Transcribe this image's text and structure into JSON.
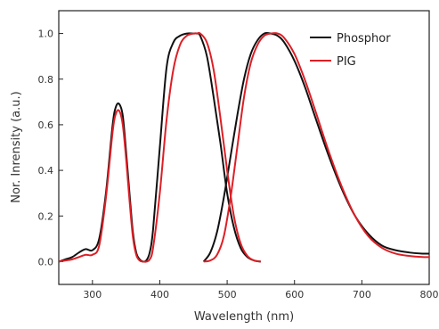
{
  "chart_data": {
    "type": "line",
    "xlabel": "Wavelength (nm)",
    "ylabel": "Nor. Inrensity (a.u.)",
    "xlim": [
      250,
      800
    ],
    "ylim": [
      -0.1,
      1.1
    ],
    "xticks": [
      300,
      400,
      500,
      600,
      700,
      800
    ],
    "yticks": [
      0.0,
      0.2,
      0.4,
      0.6,
      0.8,
      1.0
    ],
    "xtick_labels": [
      "300",
      "400",
      "500",
      "600",
      "700",
      "800"
    ],
    "ytick_labels": [
      "0.0",
      "0.2",
      "0.4",
      "0.6",
      "0.8",
      "1.0"
    ],
    "grid": false,
    "legend_position": "top-right",
    "series": [
      {
        "name": "Phosphor",
        "color": "#111111",
        "segments": [
          {
            "x": [
              250,
              260,
              270,
              280,
              290,
              300,
              310,
              320,
              330,
              335,
              340,
              345,
              350,
              355,
              360,
              365,
              370,
              375,
              380,
              385,
              390,
              400,
              410,
              420,
              430,
              440,
              450,
              455,
              460,
              470,
              480,
              490,
              500,
              510,
              520,
              530,
              540,
              550
            ],
            "y": [
              0.0,
              0.01,
              0.02,
              0.04,
              0.055,
              0.05,
              0.1,
              0.3,
              0.6,
              0.68,
              0.69,
              0.64,
              0.48,
              0.3,
              0.13,
              0.04,
              0.01,
              0.0,
              0.005,
              0.04,
              0.14,
              0.5,
              0.85,
              0.96,
              0.99,
              1.0,
              1.0,
              1.0,
              0.99,
              0.9,
              0.72,
              0.52,
              0.3,
              0.15,
              0.06,
              0.02,
              0.005,
              0.0
            ]
          },
          {
            "x": [
              465,
              475,
              485,
              495,
              505,
              515,
              525,
              535,
              545,
              555,
              565,
              575,
              585,
              600,
              615,
              630,
              650,
              670,
              690,
              710,
              730,
              750,
              770,
              790,
              800
            ],
            "y": [
              0.0,
              0.04,
              0.13,
              0.28,
              0.46,
              0.64,
              0.8,
              0.91,
              0.97,
              1.0,
              1.0,
              0.99,
              0.96,
              0.88,
              0.77,
              0.64,
              0.47,
              0.32,
              0.2,
              0.12,
              0.07,
              0.05,
              0.04,
              0.035,
              0.035
            ]
          }
        ]
      },
      {
        "name": "PIG",
        "color": "#dd1f26",
        "segments": [
          {
            "x": [
              250,
              260,
              270,
              280,
              290,
              300,
              310,
              320,
              330,
              335,
              340,
              345,
              350,
              355,
              360,
              365,
              370,
              375,
              380,
              385,
              390,
              400,
              410,
              420,
              430,
              440,
              450,
              455,
              460,
              470,
              480,
              490,
              500,
              510,
              520,
              530,
              540,
              550
            ],
            "y": [
              0.0,
              0.005,
              0.01,
              0.02,
              0.03,
              0.03,
              0.07,
              0.28,
              0.57,
              0.65,
              0.66,
              0.6,
              0.45,
              0.27,
              0.11,
              0.03,
              0.005,
              0.0,
              0.0,
              0.01,
              0.06,
              0.3,
              0.62,
              0.84,
              0.95,
              0.99,
              1.0,
              1.0,
              1.0,
              0.96,
              0.84,
              0.63,
              0.4,
              0.2,
              0.08,
              0.025,
              0.005,
              0.0
            ]
          },
          {
            "x": [
              465,
              475,
              485,
              495,
              505,
              515,
              525,
              535,
              545,
              555,
              565,
              575,
              585,
              600,
              615,
              630,
              650,
              670,
              690,
              710,
              730,
              750,
              770,
              790,
              800
            ],
            "y": [
              0.0,
              0.005,
              0.03,
              0.11,
              0.28,
              0.5,
              0.72,
              0.87,
              0.95,
              0.99,
              1.0,
              1.0,
              0.98,
              0.91,
              0.8,
              0.67,
              0.49,
              0.33,
              0.2,
              0.11,
              0.06,
              0.035,
              0.025,
              0.02,
              0.02
            ]
          }
        ]
      }
    ]
  }
}
